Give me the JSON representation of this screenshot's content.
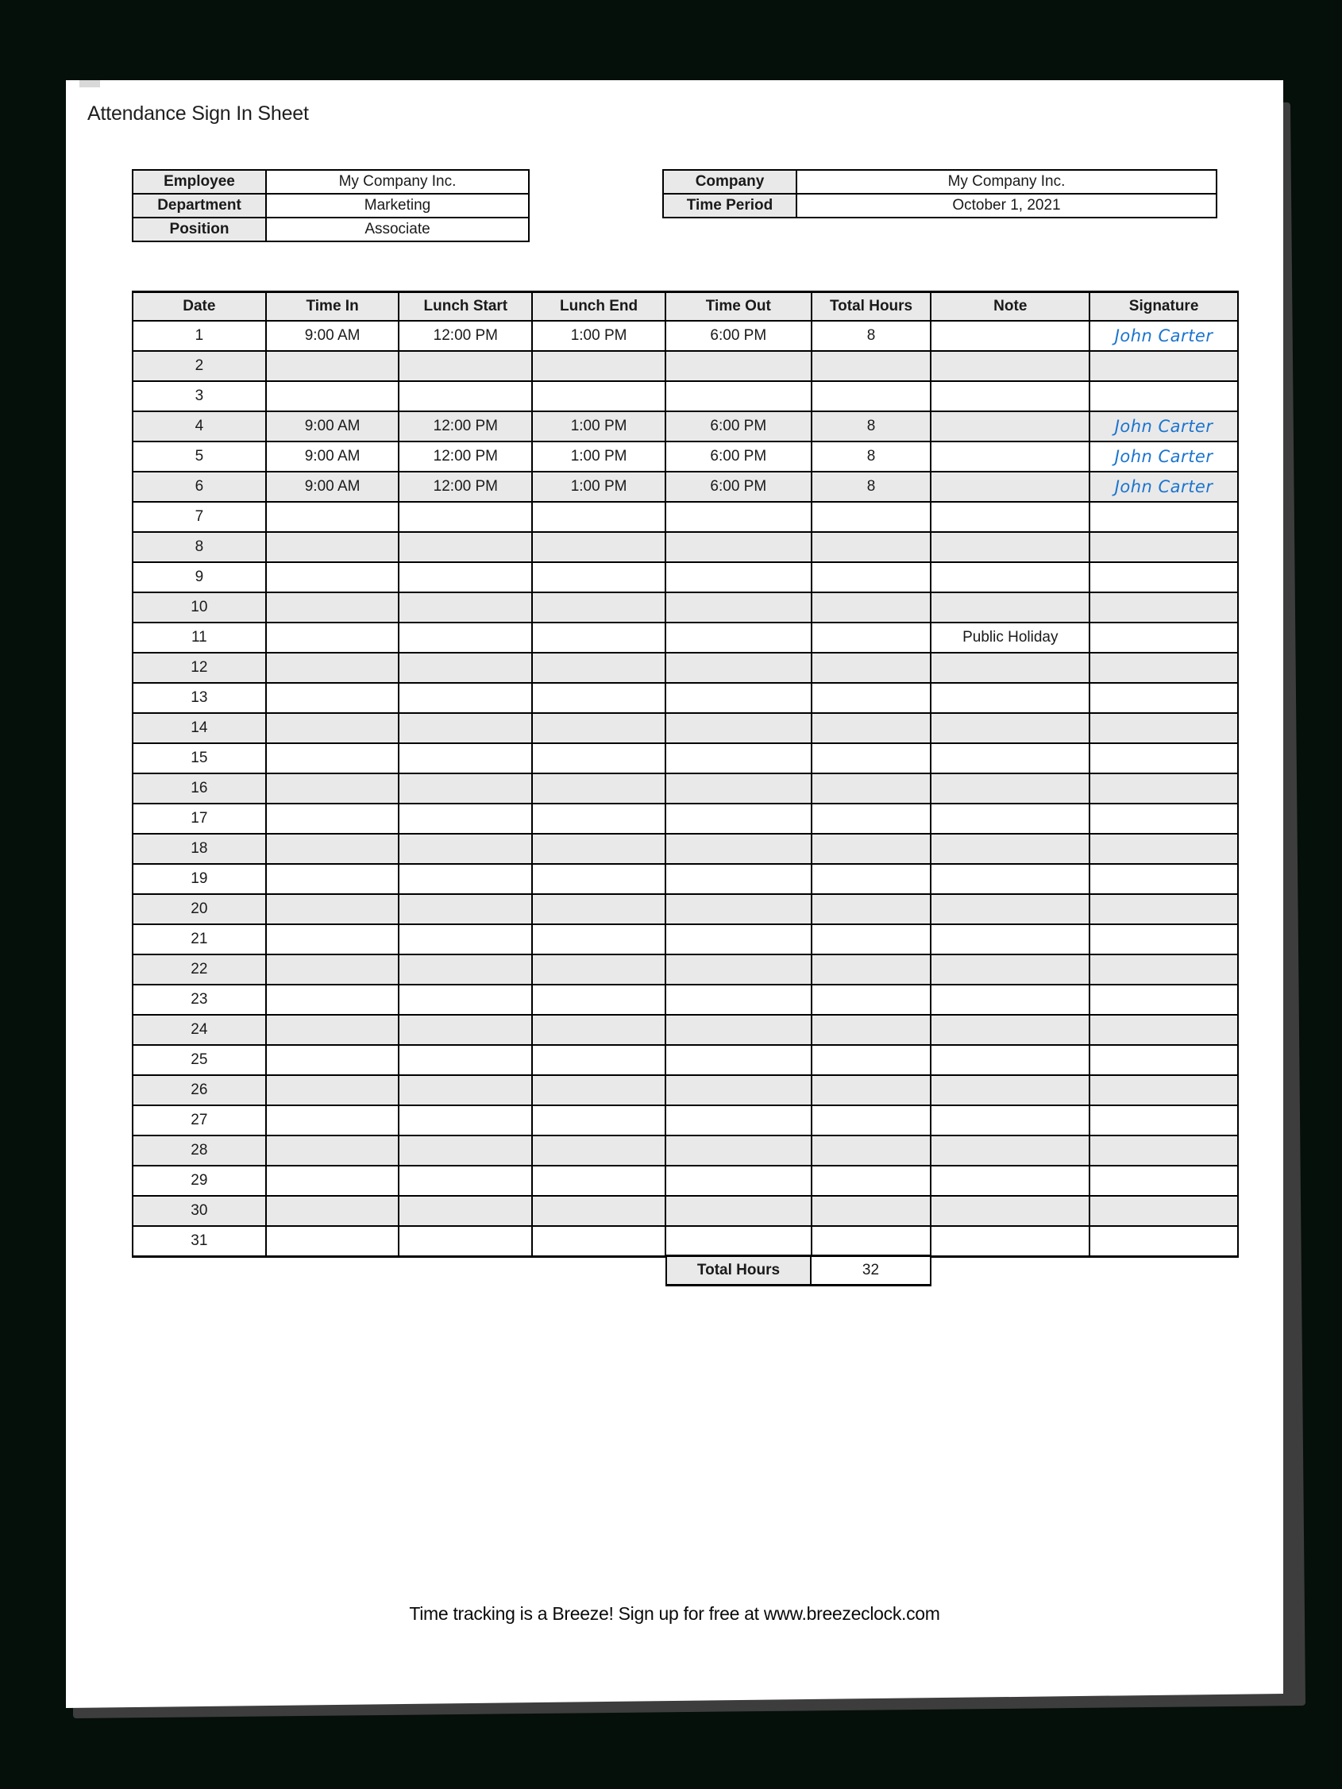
{
  "page": {
    "title": "Attendance Sign In Sheet",
    "footer": "Time tracking is a Breeze! Sign up for free at www.breezeclock.com"
  },
  "employee_info": {
    "rows": [
      {
        "label": "Employee",
        "value": "My Company Inc."
      },
      {
        "label": "Department",
        "value": "Marketing"
      },
      {
        "label": "Position",
        "value": "Associate"
      }
    ]
  },
  "company_info": {
    "rows": [
      {
        "label": "Company",
        "value": "My Company Inc."
      },
      {
        "label": "Time Period",
        "value": "October 1, 2021"
      }
    ]
  },
  "timesheet": {
    "columns": [
      "Date",
      "Time In",
      "Lunch Start",
      "Lunch End",
      "Time Out",
      "Total Hours",
      "Note",
      "Signature"
    ],
    "rows": [
      {
        "date": "1",
        "time_in": "9:00 AM",
        "lunch_start": "12:00 PM",
        "lunch_end": "1:00 PM",
        "time_out": "6:00 PM",
        "total_hours": "8",
        "note": "",
        "signature": "John Carter"
      },
      {
        "date": "2",
        "time_in": "",
        "lunch_start": "",
        "lunch_end": "",
        "time_out": "",
        "total_hours": "",
        "note": "",
        "signature": ""
      },
      {
        "date": "3",
        "time_in": "",
        "lunch_start": "",
        "lunch_end": "",
        "time_out": "",
        "total_hours": "",
        "note": "",
        "signature": ""
      },
      {
        "date": "4",
        "time_in": "9:00 AM",
        "lunch_start": "12:00 PM",
        "lunch_end": "1:00 PM",
        "time_out": "6:00 PM",
        "total_hours": "8",
        "note": "",
        "signature": "John Carter"
      },
      {
        "date": "5",
        "time_in": "9:00 AM",
        "lunch_start": "12:00 PM",
        "lunch_end": "1:00 PM",
        "time_out": "6:00 PM",
        "total_hours": "8",
        "note": "",
        "signature": "John Carter"
      },
      {
        "date": "6",
        "time_in": "9:00 AM",
        "lunch_start": "12:00 PM",
        "lunch_end": "1:00 PM",
        "time_out": "6:00 PM",
        "total_hours": "8",
        "note": "",
        "signature": "John Carter"
      },
      {
        "date": "7",
        "time_in": "",
        "lunch_start": "",
        "lunch_end": "",
        "time_out": "",
        "total_hours": "",
        "note": "",
        "signature": ""
      },
      {
        "date": "8",
        "time_in": "",
        "lunch_start": "",
        "lunch_end": "",
        "time_out": "",
        "total_hours": "",
        "note": "",
        "signature": ""
      },
      {
        "date": "9",
        "time_in": "",
        "lunch_start": "",
        "lunch_end": "",
        "time_out": "",
        "total_hours": "",
        "note": "",
        "signature": ""
      },
      {
        "date": "10",
        "time_in": "",
        "lunch_start": "",
        "lunch_end": "",
        "time_out": "",
        "total_hours": "",
        "note": "",
        "signature": ""
      },
      {
        "date": "11",
        "time_in": "",
        "lunch_start": "",
        "lunch_end": "",
        "time_out": "",
        "total_hours": "",
        "note": "Public Holiday",
        "signature": ""
      },
      {
        "date": "12",
        "time_in": "",
        "lunch_start": "",
        "lunch_end": "",
        "time_out": "",
        "total_hours": "",
        "note": "",
        "signature": ""
      },
      {
        "date": "13",
        "time_in": "",
        "lunch_start": "",
        "lunch_end": "",
        "time_out": "",
        "total_hours": "",
        "note": "",
        "signature": ""
      },
      {
        "date": "14",
        "time_in": "",
        "lunch_start": "",
        "lunch_end": "",
        "time_out": "",
        "total_hours": "",
        "note": "",
        "signature": ""
      },
      {
        "date": "15",
        "time_in": "",
        "lunch_start": "",
        "lunch_end": "",
        "time_out": "",
        "total_hours": "",
        "note": "",
        "signature": ""
      },
      {
        "date": "16",
        "time_in": "",
        "lunch_start": "",
        "lunch_end": "",
        "time_out": "",
        "total_hours": "",
        "note": "",
        "signature": ""
      },
      {
        "date": "17",
        "time_in": "",
        "lunch_start": "",
        "lunch_end": "",
        "time_out": "",
        "total_hours": "",
        "note": "",
        "signature": ""
      },
      {
        "date": "18",
        "time_in": "",
        "lunch_start": "",
        "lunch_end": "",
        "time_out": "",
        "total_hours": "",
        "note": "",
        "signature": ""
      },
      {
        "date": "19",
        "time_in": "",
        "lunch_start": "",
        "lunch_end": "",
        "time_out": "",
        "total_hours": "",
        "note": "",
        "signature": ""
      },
      {
        "date": "20",
        "time_in": "",
        "lunch_start": "",
        "lunch_end": "",
        "time_out": "",
        "total_hours": "",
        "note": "",
        "signature": ""
      },
      {
        "date": "21",
        "time_in": "",
        "lunch_start": "",
        "lunch_end": "",
        "time_out": "",
        "total_hours": "",
        "note": "",
        "signature": ""
      },
      {
        "date": "22",
        "time_in": "",
        "lunch_start": "",
        "lunch_end": "",
        "time_out": "",
        "total_hours": "",
        "note": "",
        "signature": ""
      },
      {
        "date": "23",
        "time_in": "",
        "lunch_start": "",
        "lunch_end": "",
        "time_out": "",
        "total_hours": "",
        "note": "",
        "signature": ""
      },
      {
        "date": "24",
        "time_in": "",
        "lunch_start": "",
        "lunch_end": "",
        "time_out": "",
        "total_hours": "",
        "note": "",
        "signature": ""
      },
      {
        "date": "25",
        "time_in": "",
        "lunch_start": "",
        "lunch_end": "",
        "time_out": "",
        "total_hours": "",
        "note": "",
        "signature": ""
      },
      {
        "date": "26",
        "time_in": "",
        "lunch_start": "",
        "lunch_end": "",
        "time_out": "",
        "total_hours": "",
        "note": "",
        "signature": ""
      },
      {
        "date": "27",
        "time_in": "",
        "lunch_start": "",
        "lunch_end": "",
        "time_out": "",
        "total_hours": "",
        "note": "",
        "signature": ""
      },
      {
        "date": "28",
        "time_in": "",
        "lunch_start": "",
        "lunch_end": "",
        "time_out": "",
        "total_hours": "",
        "note": "",
        "signature": ""
      },
      {
        "date": "29",
        "time_in": "",
        "lunch_start": "",
        "lunch_end": "",
        "time_out": "",
        "total_hours": "",
        "note": "",
        "signature": ""
      },
      {
        "date": "30",
        "time_in": "",
        "lunch_start": "",
        "lunch_end": "",
        "time_out": "",
        "total_hours": "",
        "note": "",
        "signature": ""
      },
      {
        "date": "31",
        "time_in": "",
        "lunch_start": "",
        "lunch_end": "",
        "time_out": "",
        "total_hours": "",
        "note": "",
        "signature": ""
      }
    ],
    "total_label": "Total Hours",
    "total_value": "32"
  },
  "colors": {
    "backdrop": "#05100a",
    "page_bg": "#ffffff",
    "page_shadow": "#3d3d3d",
    "cell_shade": "#e9e9e9",
    "border": "#000000",
    "signature_blue": "#1b74cf"
  }
}
